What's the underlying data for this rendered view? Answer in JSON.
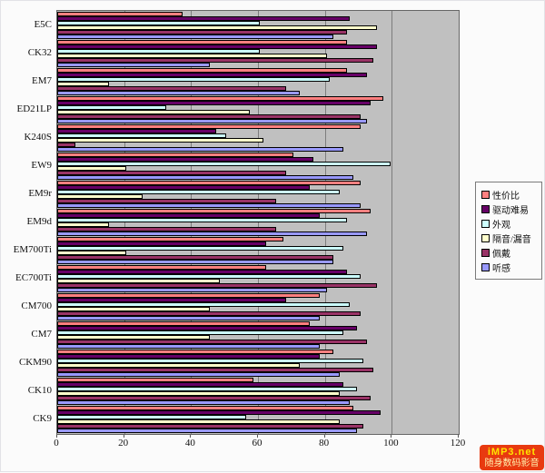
{
  "chart_data": {
    "type": "bar",
    "orientation": "horizontal",
    "title": "",
    "xlabel": "",
    "ylabel": "",
    "xlim": [
      0,
      120
    ],
    "xticks": [
      0,
      20,
      40,
      60,
      80,
      100,
      120
    ],
    "grid": "vertical",
    "plot_background": "#c0c0c0",
    "gridline_color": "#7d7d7d",
    "legend_position": "right",
    "categories": [
      "E5C",
      "CK32",
      "EM7",
      "ED21LP",
      "K240S",
      "EW9",
      "EM9r",
      "EM9d",
      "EM700Ti",
      "EC700Ti",
      "CM700",
      "CM7",
      "CKM90",
      "CK10",
      "CK9"
    ],
    "series": [
      {
        "name": "性价比",
        "color": "#ff8080",
        "values": [
          37,
          86,
          86,
          97,
          90,
          70,
          90,
          93,
          67,
          62,
          78,
          75,
          82,
          58,
          88
        ]
      },
      {
        "name": "驱动难易",
        "color": "#660066",
        "values": [
          87,
          95,
          92,
          93,
          47,
          76,
          75,
          78,
          62,
          86,
          68,
          89,
          78,
          85,
          96
        ]
      },
      {
        "name": "外观",
        "color": "#ccffff",
        "values": [
          60,
          60,
          81,
          32,
          50,
          99,
          84,
          86,
          85,
          90,
          87,
          85,
          91,
          89,
          56
        ]
      },
      {
        "name": "隔音/漏音",
        "color": "#ffffcc",
        "values": [
          95,
          80,
          15,
          57,
          61,
          20,
          25,
          15,
          20,
          48,
          45,
          45,
          72,
          84,
          84
        ]
      },
      {
        "name": "佩戴",
        "color": "#993366",
        "values": [
          86,
          94,
          68,
          90,
          5,
          68,
          65,
          65,
          82,
          95,
          90,
          92,
          94,
          93,
          91
        ]
      },
      {
        "name": "听感",
        "color": "#9999ff",
        "values": [
          82,
          45,
          72,
          92,
          85,
          88,
          90,
          92,
          82,
          80,
          78,
          78,
          84,
          87,
          89
        ]
      }
    ]
  },
  "watermark": {
    "line1": "iMP3.net",
    "line2": "随身数码影音",
    "background": "#e83a10",
    "line1_color": "#ffe400",
    "line2_color": "#fff3b0"
  }
}
